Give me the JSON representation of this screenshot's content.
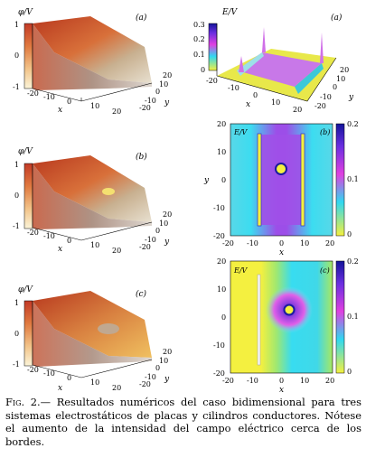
{
  "caption": {
    "label": "Fig. 2.—",
    "text": "Resultados numéricos del caso bidimensional para tres sistemas electrostáticos de placas y cilindros conductores. Nótese el aumento de la intensidad del campo eléctrico cerca de los bordes."
  },
  "colors": {
    "potential_high": "#c8402a",
    "potential_low": "#f8f0c8",
    "field_low": "#f2f040",
    "field_mid": "#e040e0",
    "field_high": "#1010a0"
  },
  "chart_data": [
    {
      "type": "surface",
      "panel_label": "(a)",
      "zlabel": "φ/V",
      "x_ticks": [
        "-20",
        "-10",
        "0",
        "10",
        "20"
      ],
      "y_ticks": [
        "-20",
        "-10",
        "0",
        "10",
        "20"
      ],
      "z_ticks": [
        "1",
        "0",
        "-1"
      ],
      "xlabel": "x",
      "ylabel": "y",
      "xlim": [
        -20,
        20
      ],
      "ylim": [
        -20,
        20
      ],
      "zlim": [
        -1,
        1
      ]
    },
    {
      "type": "surface",
      "panel_label": "(a)",
      "zlabel": "E/V",
      "x_ticks": [
        "-20",
        "-10",
        "0",
        "10",
        "20"
      ],
      "y_ticks": [
        "-20",
        "-10",
        "0",
        "10",
        "20"
      ],
      "z_ticks": [
        "0.3",
        "0.2",
        "0.1",
        "0"
      ],
      "xlabel": "x",
      "ylabel": "y",
      "xlim": [
        -20,
        20
      ],
      "ylim": [
        -20,
        20
      ],
      "zlim": [
        0,
        0.3
      ]
    },
    {
      "type": "surface",
      "panel_label": "(b)",
      "zlabel": "φ/V",
      "x_ticks": [
        "-20",
        "-10",
        "0",
        "10",
        "20"
      ],
      "y_ticks": [
        "-20",
        "-10",
        "0",
        "10",
        "20"
      ],
      "z_ticks": [
        "1",
        "0",
        "-1"
      ],
      "xlabel": "x",
      "ylabel": "y",
      "xlim": [
        -20,
        20
      ],
      "ylim": [
        -20,
        20
      ],
      "zlim": [
        -1,
        1
      ]
    },
    {
      "type": "heatmap",
      "panel_label": "(b)",
      "map_label": "E/V",
      "x_ticks": [
        "-20",
        "-10",
        "0",
        "10",
        "20"
      ],
      "y_ticks": [
        "20",
        "10",
        "0",
        "-10",
        "-20"
      ],
      "colorbar_ticks": [
        "0.2",
        "0.1",
        "0"
      ],
      "xlabel": "x",
      "ylabel": "y",
      "xlim": [
        -20,
        20
      ],
      "ylim": [
        -20,
        20
      ],
      "clim": [
        0,
        0.2
      ]
    },
    {
      "type": "surface",
      "panel_label": "(c)",
      "zlabel": "φ/V",
      "x_ticks": [
        "-20",
        "-10",
        "0",
        "10",
        "20"
      ],
      "y_ticks": [
        "-20",
        "-10",
        "0",
        "10",
        "20"
      ],
      "z_ticks": [
        "1",
        "0",
        "-1"
      ],
      "xlabel": "x",
      "ylabel": "y",
      "xlim": [
        -20,
        20
      ],
      "ylim": [
        -20,
        20
      ],
      "zlim": [
        -1,
        1
      ]
    },
    {
      "type": "heatmap",
      "panel_label": "(c)",
      "map_label": "E/V",
      "x_ticks": [
        "-20",
        "-10",
        "0",
        "10",
        "20"
      ],
      "y_ticks": [
        "20",
        "10",
        "0",
        "-10",
        "-20"
      ],
      "colorbar_ticks": [
        "0.2",
        "0.1",
        "0"
      ],
      "xlabel": "x",
      "ylabel": "",
      "xlim": [
        -20,
        20
      ],
      "ylim": [
        -20,
        20
      ],
      "clim": [
        0,
        0.2
      ]
    }
  ]
}
